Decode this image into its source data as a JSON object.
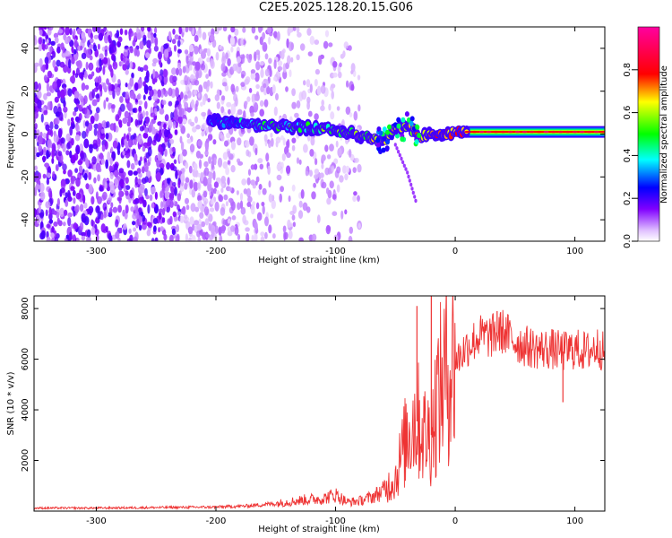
{
  "title": "C2E5.2025.128.20.15.G06",
  "chart_data": [
    {
      "type": "heatmap",
      "title": "C2E5.2025.128.20.15.G06",
      "xlabel": "Height of straight line (km)",
      "ylabel": "Frequency (Hz)",
      "xlim": [
        -352,
        125
      ],
      "ylim": [
        -50,
        50
      ],
      "x_ticks": [
        "-300",
        "-200",
        "-100",
        "0",
        "100"
      ],
      "y_ticks": [
        "-40",
        "-20",
        "0",
        "20",
        "40"
      ],
      "colorbar": {
        "label": "Normalized spectral amplitude",
        "ticks": [
          "0.0",
          "0.2",
          "0.4",
          "0.6",
          "0.8"
        ],
        "range": [
          0,
          1
        ],
        "colormap": "rainbow (white-violet-blue-cyan-green-yellow-red-magenta)"
      },
      "features": {
        "noise_region_x": [
          -352,
          -80
        ],
        "signal_track": [
          {
            "x": -205,
            "y": 6
          },
          {
            "x": -160,
            "y": 4
          },
          {
            "x": -120,
            "y": 3
          },
          {
            "x": -90,
            "y": 1
          },
          {
            "x": -70,
            "y": -2
          },
          {
            "x": -60,
            "y": -4
          },
          {
            "x": -50,
            "y": 2
          },
          {
            "x": -40,
            "y": 4
          },
          {
            "x": -30,
            "y": -1
          },
          {
            "x": -10,
            "y": 0
          },
          {
            "x": 5,
            "y": 1
          },
          {
            "x": 125,
            "y": 1
          }
        ],
        "trailing_tail": [
          {
            "x": -50,
            "y": -5
          },
          {
            "x": -40,
            "y": -18
          },
          {
            "x": -32,
            "y": -33
          }
        ]
      }
    },
    {
      "type": "line",
      "xlabel": "Height of straight line (km)",
      "ylabel": "SNR (10 * v/v)",
      "xlim": [
        -352,
        125
      ],
      "ylim": [
        0,
        8500
      ],
      "x_ticks": [
        "-300",
        "-200",
        "-100",
        "0",
        "100"
      ],
      "y_ticks": [
        "2000",
        "4000",
        "6000",
        "8000"
      ],
      "color": "#ee3333",
      "series": [
        {
          "x": [
            -352,
            -300,
            -250,
            -200,
            -175,
            -150,
            -125,
            -110,
            -100,
            -90,
            -80,
            -70,
            -60,
            -50,
            -45,
            -40,
            -35,
            -30,
            -25,
            -20,
            -15,
            -10,
            -5,
            0,
            10,
            20,
            30,
            40,
            50,
            60,
            70,
            80,
            90,
            100,
            110,
            120,
            125
          ],
          "values": [
            120,
            120,
            140,
            160,
            200,
            300,
            450,
            500,
            650,
            350,
            400,
            550,
            800,
            1300,
            2200,
            3000,
            3600,
            3500,
            3000,
            3000,
            4500,
            5200,
            5700,
            5900,
            6500,
            6900,
            6900,
            7100,
            6700,
            6500,
            6400,
            6400,
            6300,
            6400,
            6300,
            6500,
            6200
          ],
          "spikes": [
            {
              "x": -32,
              "y": 8100
            },
            {
              "x": -20,
              "y": 8500
            },
            {
              "x": 35,
              "y": 7900
            },
            {
              "x": 90,
              "y": 4300
            }
          ]
        }
      ]
    }
  ]
}
